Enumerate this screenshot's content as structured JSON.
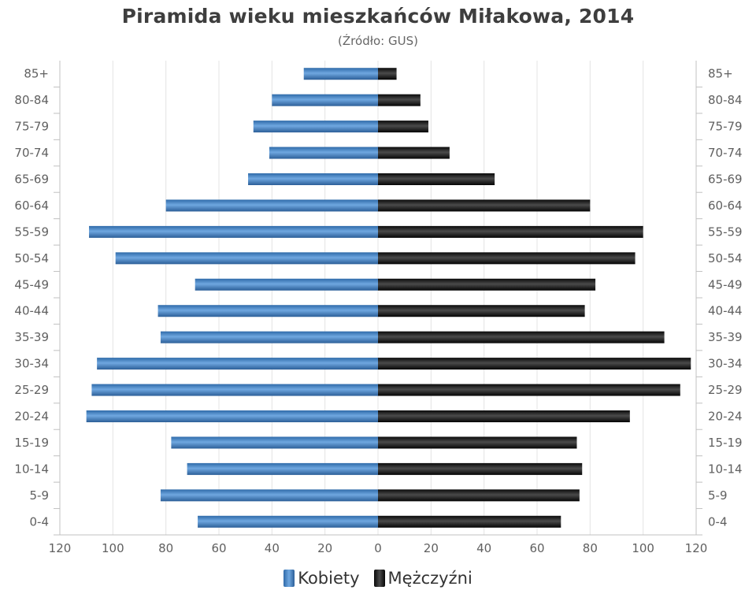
{
  "chart_data": {
    "type": "bar",
    "orientation": "horizontal-pyramid",
    "title": "Piramida wieku mieszkańców Miłakowa, 2014",
    "subtitle": "(Źródło: GUS)",
    "categories": [
      "85+",
      "80-84",
      "75-79",
      "70-74",
      "65-69",
      "60-64",
      "55-59",
      "50-54",
      "45-49",
      "40-44",
      "35-39",
      "30-34",
      "25-29",
      "20-24",
      "15-19",
      "10-14",
      "5-9",
      "0-4"
    ],
    "series": [
      {
        "name": "Kobiety",
        "side": "left",
        "color": "#4a86c8",
        "values": [
          28,
          40,
          47,
          41,
          49,
          80,
          109,
          99,
          69,
          83,
          82,
          106,
          108,
          110,
          78,
          72,
          82,
          68
        ]
      },
      {
        "name": "Mężczyźni",
        "side": "right",
        "color": "#222222",
        "values": [
          7,
          16,
          19,
          27,
          44,
          80,
          100,
          97,
          82,
          78,
          108,
          118,
          114,
          95,
          75,
          77,
          76,
          69
        ]
      }
    ],
    "xlim": [
      -120,
      120
    ],
    "x_ticks": [
      "120",
      "100",
      "80",
      "60",
      "40",
      "20",
      "0",
      "20",
      "40",
      "60",
      "80",
      "100",
      "120"
    ],
    "grid": true,
    "legend_position": "bottom-center"
  }
}
